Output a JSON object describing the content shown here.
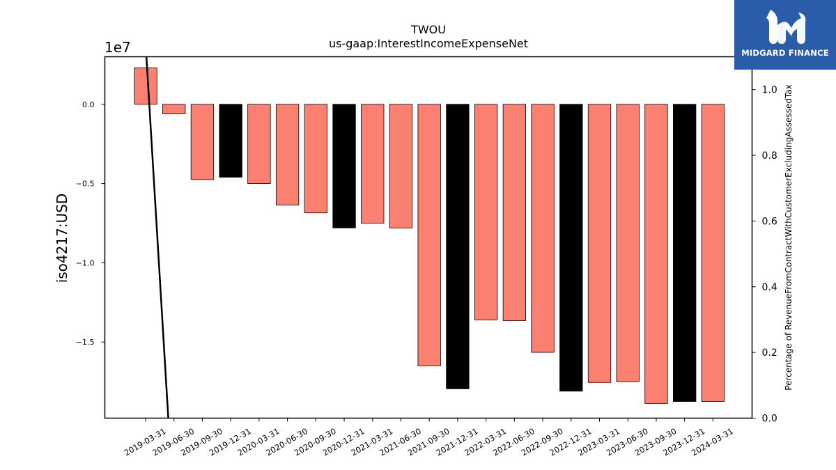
{
  "logo": {
    "text": "MIDGARD FINANCE",
    "bg_color": "#2a5caa"
  },
  "chart_data": {
    "type": "bar",
    "title": "TWOU",
    "subtitle": "us-gaap:InterestIncomeExpenseNet",
    "ylabel": "iso4217:USD",
    "y2label": "Percentage of RevenueFromContractWithCustomerExcludingAssessedTax",
    "y_offset_label": "1e7",
    "y_scale": 10000000,
    "ylim": [
      -19800000,
      3000000
    ],
    "y2lim": [
      0,
      1.1
    ],
    "yticks": [
      0,
      -5000000,
      -10000000,
      -15000000
    ],
    "ytick_labels": [
      "0.0",
      "−0.5",
      "−1.0",
      "−1.5"
    ],
    "y2ticks": [
      0.0,
      0.2,
      0.4,
      0.6,
      0.8,
      1.0
    ],
    "y2tick_labels": [
      "0.0",
      "0.2",
      "0.4",
      "0.6",
      "0.8",
      "1.0"
    ],
    "categories": [
      "2019-03-31",
      "2019-06-30",
      "2019-09-30",
      "2019-12-31",
      "2020-03-31",
      "2020-06-30",
      "2020-09-30",
      "2020-12-31",
      "2021-03-31",
      "2021-06-30",
      "2021-09-30",
      "2021-12-31",
      "2022-03-31",
      "2022-06-30",
      "2022-09-30",
      "2022-12-31",
      "2023-03-31",
      "2023-06-30",
      "2023-09-30",
      "2023-12-31",
      "2024-03-31"
    ],
    "values": [
      2300000,
      -600000,
      -4750000,
      -4600000,
      -5000000,
      -6350000,
      -6850000,
      -7800000,
      -7500000,
      -7800000,
      -16500000,
      -17950000,
      -13600000,
      -13650000,
      -15650000,
      -18100000,
      -17550000,
      -17500000,
      -18870000,
      -18750000,
      -18750000
    ],
    "bar_colors": [
      "#fa8072",
      "#fa8072",
      "#fa8072",
      "#000000",
      "#fa8072",
      "#fa8072",
      "#fa8072",
      "#000000",
      "#fa8072",
      "#fa8072",
      "#fa8072",
      "#000000",
      "#fa8072",
      "#fa8072",
      "#fa8072",
      "#000000",
      "#fa8072",
      "#fa8072",
      "#fa8072",
      "#000000",
      "#fa8072"
    ],
    "line_series": {
      "color": "#000000",
      "x": [
        0,
        0.8
      ],
      "y2": [
        1.14,
        0.0
      ]
    },
    "grid": false,
    "legend": "none"
  }
}
